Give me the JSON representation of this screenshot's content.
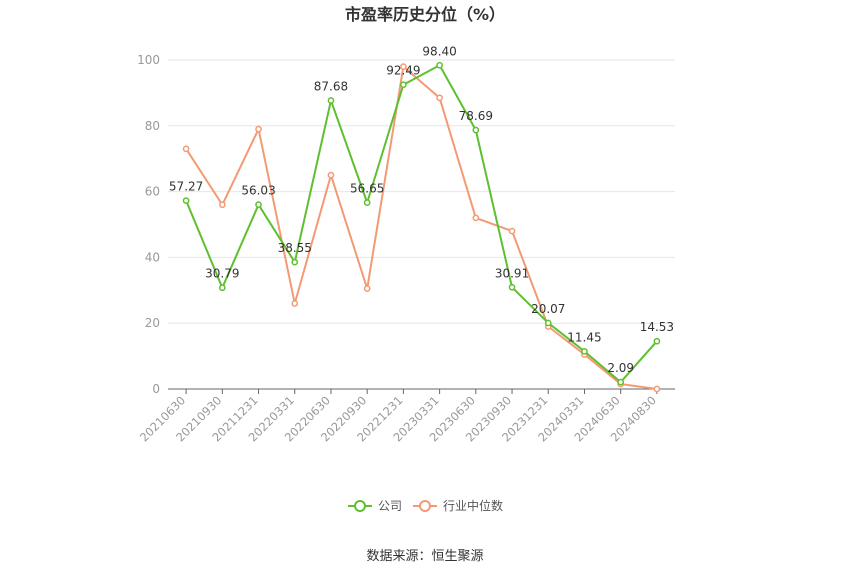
{
  "chart_data": {
    "type": "line",
    "title": "市盈率历史分位（%）",
    "categories": [
      "20210630",
      "20210930",
      "20211231",
      "20220331",
      "20220630",
      "20220930",
      "20221231",
      "20230331",
      "20230630",
      "20230930",
      "20231231",
      "20240331",
      "20240630",
      "20240830"
    ],
    "series": [
      {
        "name": "公司",
        "color": "#5ec02e",
        "values": [
          57.27,
          30.79,
          56.03,
          38.55,
          87.68,
          56.65,
          92.49,
          98.4,
          78.69,
          30.91,
          20.07,
          11.45,
          2.09,
          14.53
        ],
        "labels": [
          "57.27",
          "30.79",
          "56.03",
          "38.55",
          "87.68",
          "56.65",
          "92.49",
          "98.40",
          "78.69",
          "30.91",
          "20.07",
          "11.45",
          "2.09",
          "14.53"
        ]
      },
      {
        "name": "行业中位数",
        "color": "#f39a74",
        "values": [
          73,
          56,
          79,
          26,
          65,
          30.5,
          98,
          88.5,
          52,
          48,
          19,
          10.5,
          1.5,
          0
        ]
      }
    ],
    "yticks": [
      0,
      20,
      40,
      60,
      80,
      100
    ],
    "ylim": [
      0,
      100
    ],
    "grid": true,
    "legend_position": "bottom",
    "source": "数据来源：恒生聚源"
  }
}
